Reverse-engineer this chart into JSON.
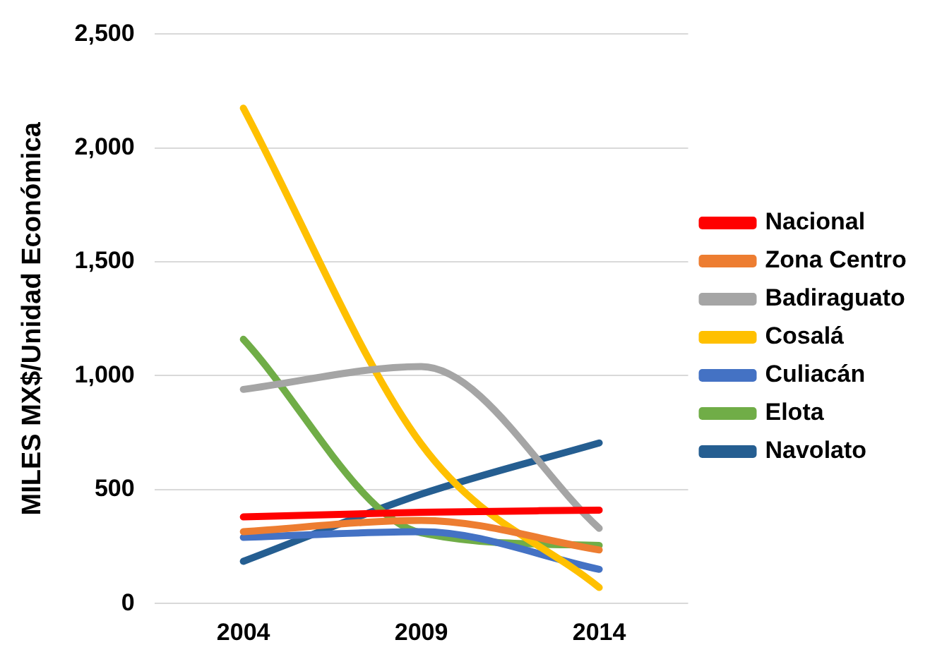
{
  "chart_data": {
    "type": "line",
    "ylabel": "MILES MX$/Unidad Económica",
    "categories": [
      "2004",
      "2009",
      "2014"
    ],
    "series": [
      {
        "name": "Nacional",
        "color": "#ff0000",
        "values": [
          380,
          400,
          410
        ]
      },
      {
        "name": "Zona Centro",
        "color": "#ed7d31",
        "values": [
          315,
          365,
          235
        ]
      },
      {
        "name": "Badiraguato",
        "color": "#a5a5a5",
        "values": [
          940,
          1040,
          330
        ]
      },
      {
        "name": "Cosalá",
        "color": "#ffc000",
        "values": [
          2175,
          700,
          70
        ]
      },
      {
        "name": "Culiacán",
        "color": "#4472c4",
        "values": [
          290,
          315,
          150
        ]
      },
      {
        "name": "Elota",
        "color": "#70ad47",
        "values": [
          1160,
          310,
          255
        ]
      },
      {
        "name": "Navolato",
        "color": "#255e91",
        "values": [
          185,
          480,
          705
        ]
      }
    ],
    "ylim": [
      0,
      2500
    ],
    "yticks": [
      {
        "value": 0,
        "label": "0"
      },
      {
        "value": 500,
        "label": "500"
      },
      {
        "value": 1000,
        "label": "1,000"
      },
      {
        "value": 1500,
        "label": "1,500"
      },
      {
        "value": 2000,
        "label": "2,000"
      },
      {
        "value": 2500,
        "label": "2,500"
      }
    ],
    "grid": "y",
    "legend": "right",
    "marker": "none"
  }
}
